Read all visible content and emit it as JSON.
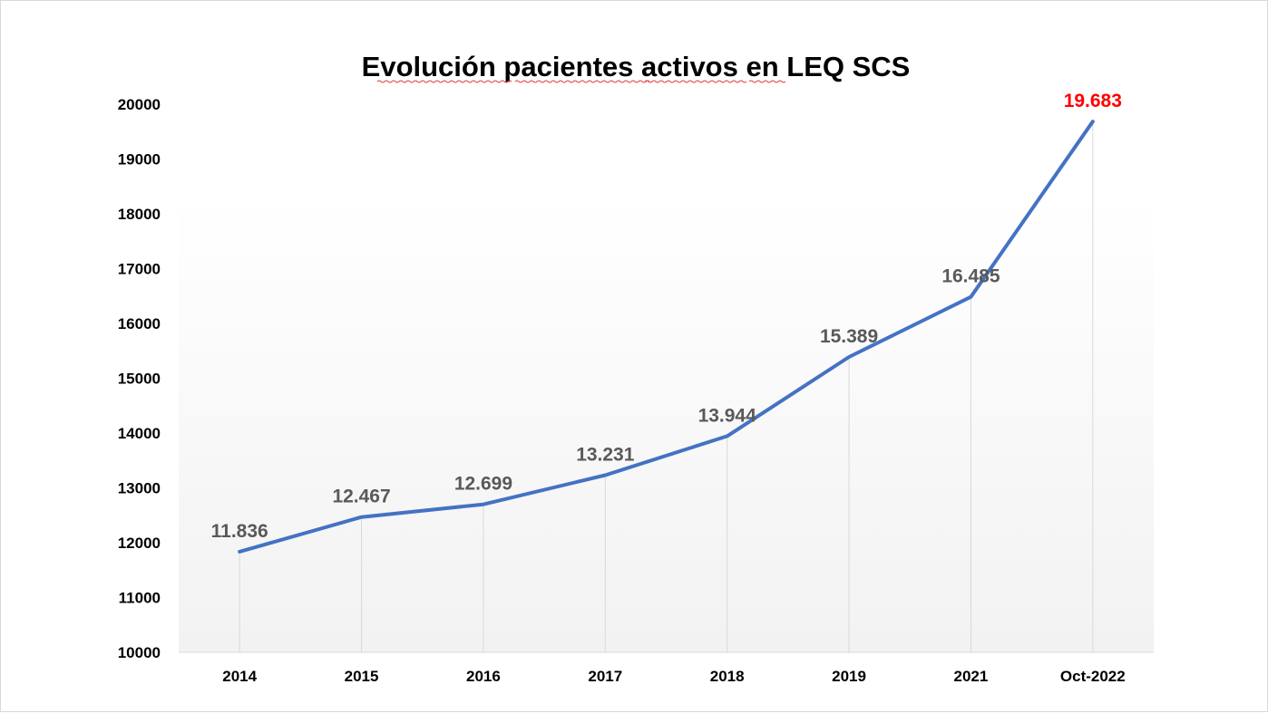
{
  "chart_data": {
    "type": "line",
    "title": "Evolución pacientes activos en LEQ SCS",
    "categories": [
      "2014",
      "2015",
      "2016",
      "2017",
      "2018",
      "2019",
      "2021",
      "Oct-2022"
    ],
    "series": [
      {
        "values": [
          11836,
          12467,
          12699,
          13231,
          13944,
          15389,
          16485,
          19683
        ],
        "color": "#4472C4"
      }
    ],
    "data_labels": [
      "11.836",
      "12.467",
      "12.699",
      "13.231",
      "13.944",
      "15.389",
      "16.485",
      "19.683"
    ],
    "data_label_colors": [
      "#595959",
      "#595959",
      "#595959",
      "#595959",
      "#595959",
      "#595959",
      "#595959",
      "#FF0000"
    ],
    "ylim": [
      10000,
      20000
    ],
    "yticks": [
      "10000",
      "11000",
      "12000",
      "13000",
      "14000",
      "15000",
      "16000",
      "17000",
      "18000",
      "19000",
      "20000"
    ],
    "xlabel": "",
    "ylabel": "",
    "grid": "vertical drop lines",
    "legend": "none"
  }
}
